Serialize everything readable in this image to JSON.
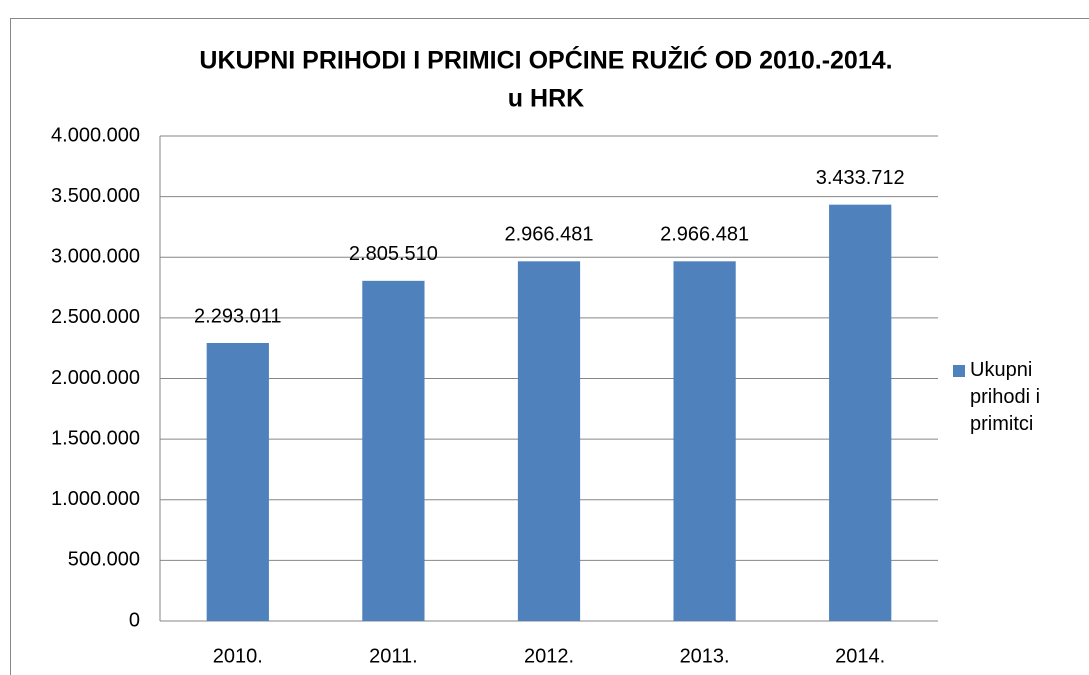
{
  "chart_data": {
    "type": "bar",
    "title": "UKUPNI PRIHODI I PRIMICI OPĆINE RUŽIĆ OD 2010.-2014.",
    "subtitle": "u HRK",
    "categories": [
      "2010.",
      "2011.",
      "2012.",
      "2013.",
      "2014."
    ],
    "series": [
      {
        "name": "Ukupni prihodi i primitci",
        "color": "#4f81bd",
        "values": [
          2293011,
          2805510,
          2966481,
          2966481,
          3433712
        ],
        "value_labels": [
          "2.293.011",
          "2.805.510",
          "2.966.481",
          "2.966.481",
          "3.433.712"
        ]
      }
    ],
    "ylim": [
      0,
      4000000
    ],
    "yticks": [
      0,
      {
        "value": 500000,
        "label": "500.000"
      },
      {
        "value": 1000000,
        "label": "1.000.000"
      },
      {
        "value": 1500000,
        "label": "1.500.000"
      },
      {
        "value": 2000000,
        "label": "2.000.000"
      },
      {
        "value": 2500000,
        "label": "2.500.000"
      },
      {
        "value": 3000000,
        "label": "3.000.000"
      },
      {
        "value": 3500000,
        "label": "3.500.000"
      },
      {
        "value": 4000000,
        "label": "4.000.000"
      }
    ],
    "grid": true,
    "legend": "right"
  }
}
